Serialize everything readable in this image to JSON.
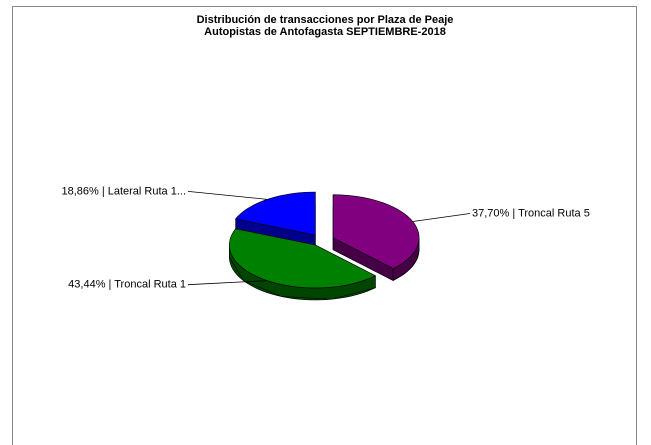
{
  "chart_data": {
    "type": "pie3d",
    "title": "Distribución de transacciones por Plaza de Peaje",
    "subtitle": "Autopistas de Antofagasta SEPTIEMBRE-2018",
    "categories": [
      "Troncal Ruta 5",
      "Troncal Ruta 1",
      "Lateral Ruta 1..."
    ],
    "values": [
      37.7,
      43.44,
      18.86
    ],
    "labels": [
      "37,70% | Troncal Ruta 5",
      "43,44% | Troncal Ruta 1",
      "18,86% | Lateral Ruta 1..."
    ],
    "colors": [
      "#800080",
      "#008000",
      "#0000ff"
    ]
  }
}
